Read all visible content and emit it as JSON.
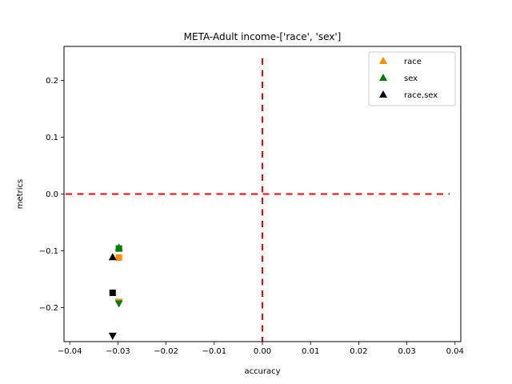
{
  "chart_data": {
    "type": "scatter",
    "title": "META-Adult income-['race', 'sex']",
    "xlabel": "accuracy",
    "ylabel": "metrics",
    "xlim": [
      -0.0412,
      0.0412
    ],
    "ylim": [
      -0.26,
      0.26
    ],
    "xticks": [
      -0.04,
      -0.03,
      -0.02,
      -0.01,
      0.0,
      0.01,
      0.02,
      0.03,
      0.04
    ],
    "xtick_labels": [
      "−0.04",
      "−0.03",
      "−0.02",
      "−0.01",
      "0.00",
      "0.01",
      "0.02",
      "0.03",
      "0.04"
    ],
    "yticks": [
      0.2,
      0.1,
      0.0,
      -0.1,
      -0.2
    ],
    "ytick_labels": [
      "0.2",
      "0.1",
      "0.0",
      "−0.1",
      "−0.2"
    ],
    "grid": false,
    "legend_position": "upper-right",
    "reference_lines": [
      {
        "orientation": "horizontal",
        "value": 0.0,
        "color": "#ff0000",
        "style": "dashed"
      },
      {
        "orientation": "vertical",
        "value": 0.0,
        "color": "#ff0000",
        "style": "dashed"
      }
    ],
    "series": [
      {
        "name": "race",
        "color": "#ff8c00",
        "points": [
          {
            "x": -0.0298,
            "y": -0.096,
            "marker": "triangle-up"
          },
          {
            "x": -0.0298,
            "y": -0.112,
            "marker": "square"
          },
          {
            "x": -0.0298,
            "y": -0.19,
            "marker": "triangle-down"
          }
        ]
      },
      {
        "name": "sex",
        "color": "#008000",
        "points": [
          {
            "x": -0.0298,
            "y": -0.094,
            "marker": "triangle-up"
          },
          {
            "x": -0.0298,
            "y": -0.096,
            "marker": "square"
          },
          {
            "x": -0.0298,
            "y": -0.193,
            "marker": "triangle-down"
          }
        ]
      },
      {
        "name": "race,sex",
        "color": "#000000",
        "points": [
          {
            "x": -0.0311,
            "y": -0.111,
            "marker": "triangle-up"
          },
          {
            "x": -0.0311,
            "y": -0.174,
            "marker": "square"
          },
          {
            "x": -0.0311,
            "y": -0.25,
            "marker": "triangle-down"
          }
        ]
      }
    ]
  }
}
